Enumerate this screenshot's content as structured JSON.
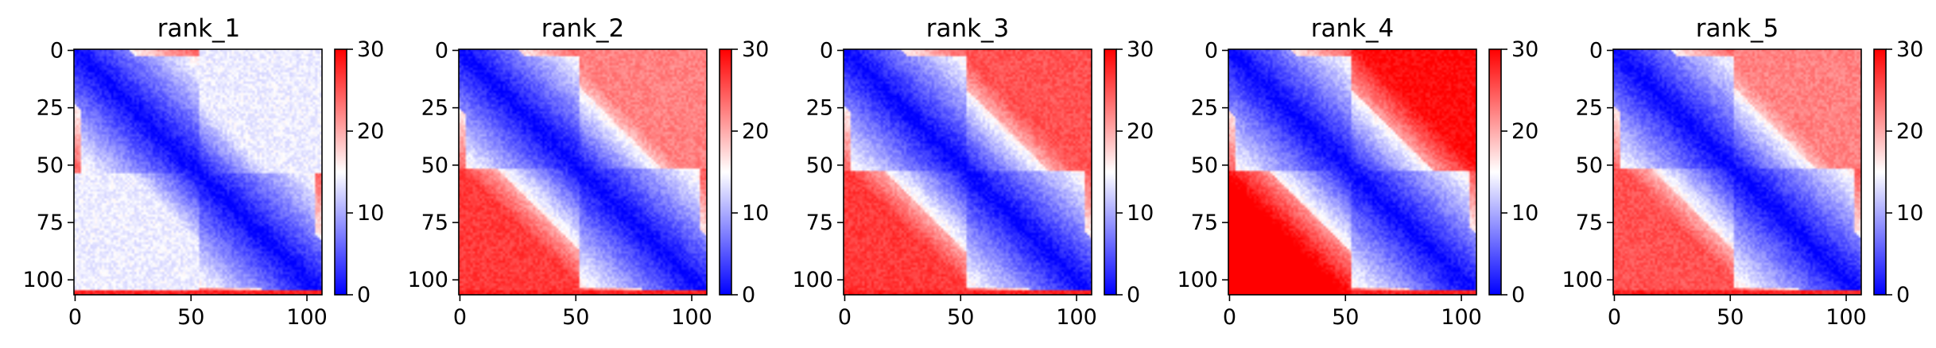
{
  "chart_data": [
    {
      "type": "heatmap",
      "title": "rank_1",
      "size": 107,
      "xticks": [
        0,
        50,
        100
      ],
      "yticks": [
        0,
        25,
        50,
        75,
        100
      ],
      "colorbar": {
        "ticks": [
          0,
          10,
          20,
          30
        ],
        "vmin": 0,
        "vmax": 30,
        "colors": [
          "#0000ff",
          "#ffffff",
          "#ff0000"
        ]
      },
      "pattern": {
        "split": 54,
        "offblock_top": 14,
        "offblock_bottom": 14,
        "edge_band": 23
      }
    },
    {
      "type": "heatmap",
      "title": "rank_2",
      "size": 107,
      "xticks": [
        0,
        50,
        100
      ],
      "yticks": [
        0,
        25,
        50,
        75,
        100
      ],
      "colorbar": {
        "ticks": [
          0,
          10,
          20,
          30
        ],
        "vmin": 0,
        "vmax": 30,
        "colors": [
          "#0000ff",
          "#ffffff",
          "#ff0000"
        ]
      },
      "pattern": {
        "split": 52,
        "offblock_top": 20,
        "offblock_bottom": 23,
        "edge_band": 25
      }
    },
    {
      "type": "heatmap",
      "title": "rank_3",
      "size": 107,
      "xticks": [
        0,
        50,
        100
      ],
      "yticks": [
        0,
        25,
        50,
        75,
        100
      ],
      "colorbar": {
        "ticks": [
          0,
          10,
          20,
          30
        ],
        "vmin": 0,
        "vmax": 30,
        "colors": [
          "#0000ff",
          "#ffffff",
          "#ff0000"
        ]
      },
      "pattern": {
        "split": 53,
        "offblock_top": 22,
        "offblock_bottom": 23,
        "edge_band": 24
      }
    },
    {
      "type": "heatmap",
      "title": "rank_4",
      "size": 107,
      "xticks": [
        0,
        50,
        100
      ],
      "yticks": [
        0,
        25,
        50,
        75,
        100
      ],
      "colorbar": {
        "ticks": [
          0,
          10,
          20,
          30
        ],
        "vmin": 0,
        "vmax": 30,
        "colors": [
          "#0000ff",
          "#ffffff",
          "#ff0000"
        ]
      },
      "pattern": {
        "split": 53,
        "offblock_top": 25,
        "offblock_bottom": 27,
        "edge_band": 26
      }
    },
    {
      "type": "heatmap",
      "title": "rank_5",
      "size": 107,
      "xticks": [
        0,
        50,
        100
      ],
      "yticks": [
        0,
        25,
        50,
        75,
        100
      ],
      "colorbar": {
        "ticks": [
          0,
          10,
          20,
          30
        ],
        "vmin": 0,
        "vmax": 30,
        "colors": [
          "#0000ff",
          "#ffffff",
          "#ff0000"
        ]
      },
      "pattern": {
        "split": 52,
        "offblock_top": 20,
        "offblock_bottom": 22,
        "edge_band": 24
      }
    }
  ]
}
